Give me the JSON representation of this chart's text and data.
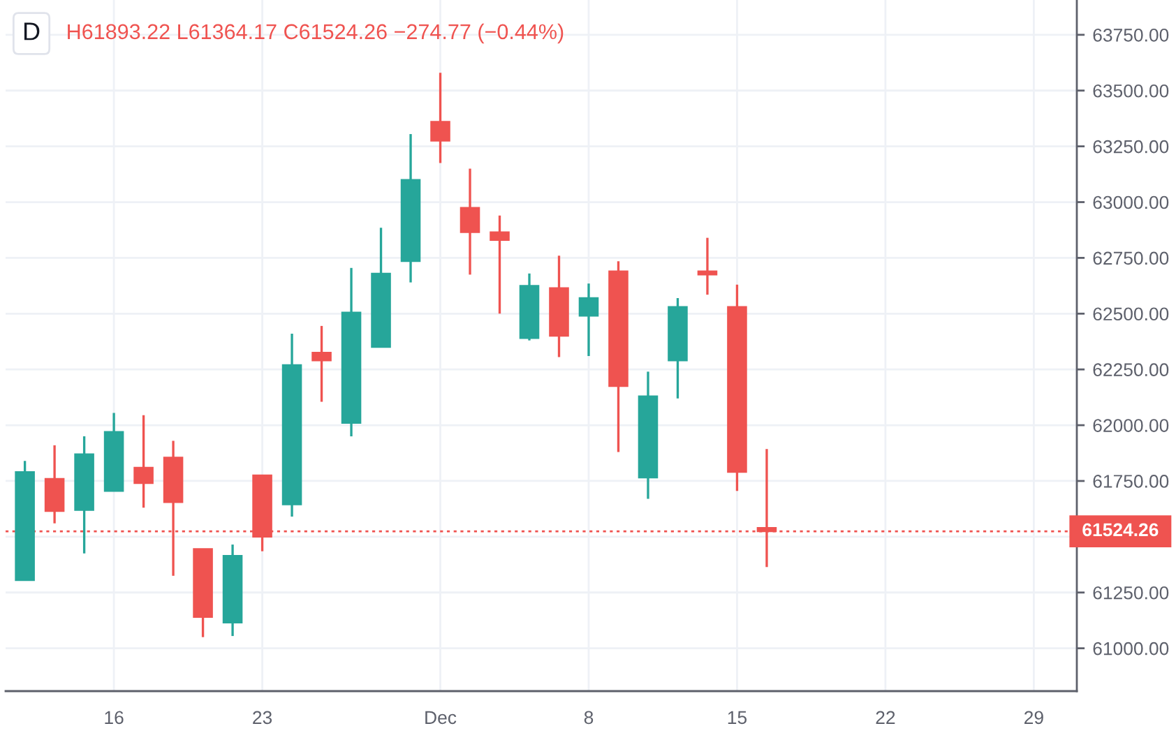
{
  "chart_data": {
    "type": "candlestick",
    "title": "D",
    "subtitle": "H61893.22 L61364.17 C61524.26 −274.77 (−0.44%)",
    "categories": [
      null,
      null,
      null,
      "16",
      null,
      null,
      null,
      null,
      "23",
      null,
      null,
      null,
      null,
      null,
      "Dec",
      null,
      null,
      null,
      null,
      "8",
      null,
      null,
      null,
      null,
      "15",
      null,
      null,
      null,
      null,
      "22",
      null,
      null,
      null,
      null,
      "29",
      null
    ],
    "ohlc": [
      [
        61305,
        61840,
        61305,
        61790
      ],
      [
        61760,
        61910,
        61560,
        61615
      ],
      [
        61620,
        61950,
        61425,
        61870
      ],
      [
        61705,
        62055,
        61705,
        61970
      ],
      [
        61810,
        62045,
        61630,
        61740
      ],
      [
        61855,
        61930,
        61325,
        61655
      ],
      [
        61445,
        61445,
        61050,
        61140
      ],
      [
        61115,
        61465,
        61055,
        61415
      ],
      [
        61775,
        61775,
        61435,
        61500
      ],
      [
        61645,
        62410,
        61590,
        62270
      ],
      [
        62325,
        62445,
        62105,
        62290
      ],
      [
        62010,
        62705,
        61950,
        62505
      ],
      [
        62350,
        62885,
        62350,
        62680
      ],
      [
        62735,
        63305,
        62640,
        63100
      ],
      [
        63360,
        63580,
        63175,
        63275
      ],
      [
        62975,
        63150,
        62675,
        62865
      ],
      [
        62865,
        62940,
        62500,
        62830
      ],
      [
        62390,
        62680,
        62380,
        62625
      ],
      [
        62615,
        62760,
        62305,
        62400
      ],
      [
        62490,
        62635,
        62310,
        62570
      ],
      [
        62690,
        62735,
        61880,
        62175
      ],
      [
        61765,
        62240,
        61670,
        62130
      ],
      [
        62290,
        62570,
        62120,
        62530
      ],
      [
        62690,
        62840,
        62585,
        62675
      ],
      [
        62530,
        62630,
        61705,
        61790
      ],
      [
        61540,
        61893.22,
        61364.17,
        61524.26
      ],
      null,
      null,
      null,
      null,
      null,
      null,
      null,
      null,
      null,
      null
    ],
    "colors": [
      "#26a69a",
      "#ef5350",
      "#26a69a",
      "#26a69a",
      "#ef5350",
      "#ef5350",
      "#ef5350",
      "#26a69a",
      "#ef5350",
      "#26a69a",
      "#ef5350",
      "#26a69a",
      "#26a69a",
      "#26a69a",
      "#ef5350",
      "#ef5350",
      "#ef5350",
      "#26a69a",
      "#ef5350",
      "#26a69a",
      "#ef5350",
      "#26a69a",
      "#26a69a",
      "#ef5350",
      "#ef5350",
      "#ef5350",
      null,
      null,
      null,
      null,
      null,
      null,
      null,
      null,
      null,
      null
    ],
    "ylim": [
      60808,
      63906
    ],
    "yticks": [
      {
        "value": 61000,
        "label": "61000.00"
      },
      {
        "value": 61250,
        "label": "61250.00"
      },
      {
        "value": 61500,
        "label": null
      },
      {
        "value": 61750,
        "label": "61750.00"
      },
      {
        "value": 62000,
        "label": "62000.00"
      },
      {
        "value": 62250,
        "label": "62250.00"
      },
      {
        "value": 62500,
        "label": "62500.00"
      },
      {
        "value": 62750,
        "label": "62750.00"
      },
      {
        "value": 63000,
        "label": "63000.00"
      },
      {
        "value": 63250,
        "label": "63250.00"
      },
      {
        "value": 63500,
        "label": "63500.00"
      },
      {
        "value": 63750,
        "label": "63750.00"
      }
    ],
    "grid": true,
    "ref_lines": [
      {
        "axis": "y",
        "value": 61524.26,
        "label": "61524.26",
        "color": "#ef5350",
        "line_style": "dotted"
      }
    ]
  }
}
